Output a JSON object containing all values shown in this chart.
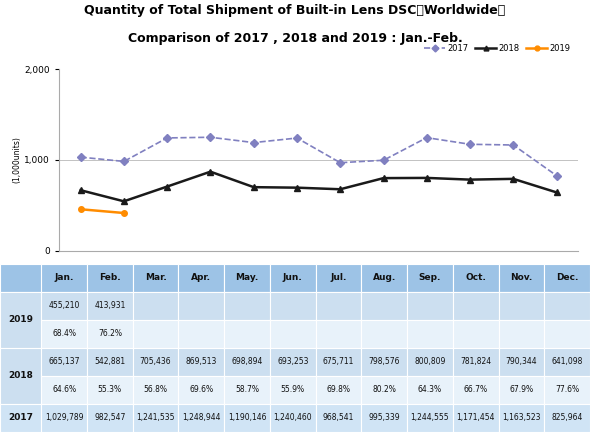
{
  "title_line1": "Quantity of Total Shipment of Built-in Lens DSC【Worldwide】",
  "title_line2": "Comparison of 2017 , 2018 and 2019 : Jan.-Feb.",
  "ylabel": "(1,000units)",
  "months": [
    "Jan.",
    "Feb.",
    "Mar.",
    "Apr.",
    "May.",
    "Jun.",
    "Jul.",
    "Aug.",
    "Sep.",
    "Oct.",
    "Nov.",
    "Dec."
  ],
  "y2017": [
    1029789,
    982547,
    1241535,
    1248944,
    1190146,
    1240460,
    968541,
    995339,
    1244555,
    1171454,
    1163523,
    825964
  ],
  "y2018": [
    665137,
    542881,
    705436,
    869513,
    698894,
    693253,
    675711,
    798576,
    800809,
    781824,
    790344,
    641098
  ],
  "y2019": [
    455210,
    413931,
    null,
    null,
    null,
    null,
    null,
    null,
    null,
    null,
    null,
    null
  ],
  "pct2018": [
    "64.6%",
    "55.3%",
    "56.8%",
    "69.6%",
    "58.7%",
    "55.9%",
    "69.8%",
    "80.2%",
    "64.3%",
    "66.7%",
    "67.9%",
    "77.6%"
  ],
  "pct2019": [
    "68.4%",
    "76.2%",
    "",
    "",
    "",
    "",
    "",
    "",
    "",
    "",
    "",
    ""
  ],
  "color2017": "#8080C0",
  "color2018": "#1a1a1a",
  "color2019": "#FF8C00",
  "ylim": [
    0,
    2000
  ],
  "yticks": [
    0,
    1000,
    2000
  ],
  "background_color": "#ffffff",
  "table_header_color": "#9DC3E6",
  "table_row_color_light": "#CCDFF0",
  "table_row_color_white": "#E8F2FA",
  "table_row_color_2017": "#D0E4F5"
}
